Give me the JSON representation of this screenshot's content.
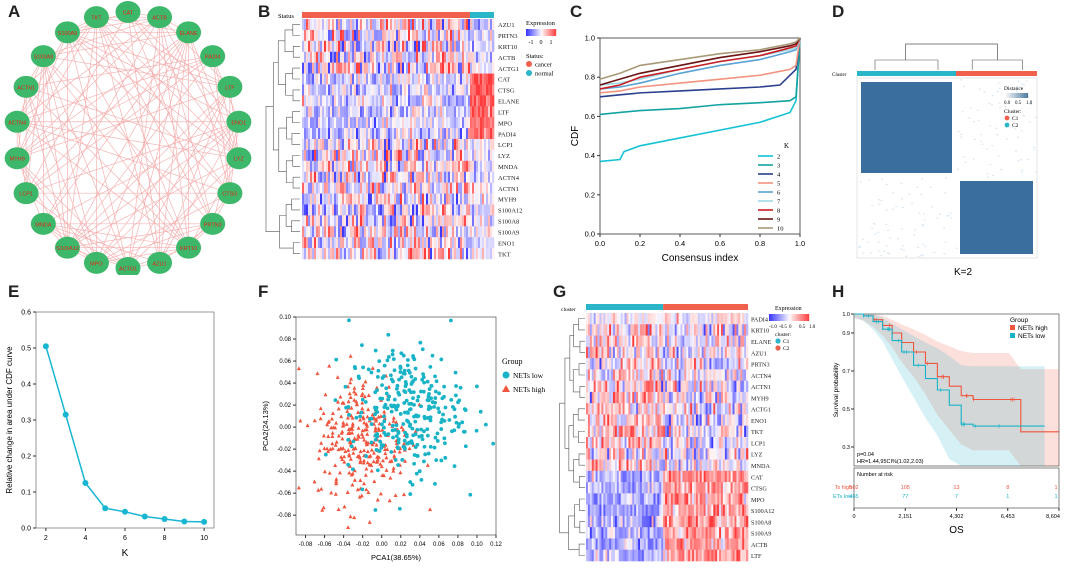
{
  "panel_labels": [
    "A",
    "B",
    "C",
    "D",
    "E",
    "F",
    "G",
    "H"
  ],
  "chart_data": [
    {
      "panel": "A",
      "type": "network",
      "nodes": [
        "CAT",
        "TKT",
        "S100A9",
        "S100A8",
        "ACTN1",
        "ACTN4",
        "MYH9",
        "LCP1",
        "MNDA",
        "S100A12",
        "MPO",
        "ACTG1",
        "AZU1",
        "KRT10",
        "PRTN3",
        "CTSG",
        "LYZ",
        "ENO1",
        "LTF",
        "PADI4",
        "ELANE",
        "ACTB"
      ],
      "node_color": "#3db86a",
      "edge_color": "#f4a7a7"
    },
    {
      "panel": "B",
      "type": "heatmap",
      "column_annotation_title": "Status",
      "rows": [
        "AZU1",
        "PRTN3",
        "KRT10",
        "ACTB",
        "ACTG1",
        "CAT",
        "CTSG",
        "ELANE",
        "LTF",
        "MPO",
        "PADI4",
        "LCP1",
        "LYZ",
        "MNDA",
        "ACTN4",
        "ACTN1",
        "MYH9",
        "S100A12",
        "S100A8",
        "S100A9",
        "ENO1",
        "TKT"
      ],
      "legend_title": "Expression",
      "legend_ticks": [
        "-1",
        "0",
        "1"
      ],
      "status_title": "Status:",
      "status_levels": [
        "cancer",
        "normal"
      ],
      "status_colors": [
        "#f0604d",
        "#2bb5c9"
      ]
    },
    {
      "panel": "C",
      "type": "line",
      "xlabel": "Consensus index",
      "ylabel": "CDF",
      "xlim": [
        0,
        1
      ],
      "ylim": [
        0,
        1
      ],
      "x_ticks": [
        "0.0",
        "0.2",
        "0.4",
        "0.6",
        "0.8",
        "1.0"
      ],
      "y_ticks": [
        "0.0",
        "0.2",
        "0.4",
        "0.6",
        "0.8",
        "1.0"
      ],
      "legend_title": "K",
      "series": [
        {
          "name": "2",
          "color": "#16c2d6",
          "x": [
            0,
            0.1,
            0.12,
            0.2,
            0.4,
            0.6,
            0.8,
            0.95,
            0.98,
            1
          ],
          "y": [
            0.37,
            0.38,
            0.42,
            0.45,
            0.49,
            0.53,
            0.57,
            0.62,
            0.68,
            1.0
          ]
        },
        {
          "name": "3",
          "color": "#14a3a0",
          "x": [
            0,
            0.1,
            0.2,
            0.4,
            0.6,
            0.8,
            0.95,
            0.98,
            1
          ],
          "y": [
            0.61,
            0.62,
            0.63,
            0.64,
            0.66,
            0.67,
            0.68,
            0.7,
            1.0
          ]
        },
        {
          "name": "4",
          "color": "#2b3f8e",
          "x": [
            0,
            0.1,
            0.2,
            0.4,
            0.6,
            0.8,
            0.9,
            0.95,
            0.98,
            1
          ],
          "y": [
            0.7,
            0.71,
            0.72,
            0.73,
            0.74,
            0.75,
            0.76,
            0.81,
            0.84,
            1.0
          ]
        },
        {
          "name": "5",
          "color": "#f4937f",
          "x": [
            0,
            0.1,
            0.2,
            0.4,
            0.6,
            0.8,
            0.95,
            0.98,
            1
          ],
          "y": [
            0.72,
            0.73,
            0.75,
            0.77,
            0.79,
            0.81,
            0.84,
            0.86,
            1.0
          ]
        },
        {
          "name": "6",
          "color": "#5aa3d6",
          "x": [
            0,
            0.1,
            0.2,
            0.4,
            0.6,
            0.8,
            0.95,
            0.98,
            1
          ],
          "y": [
            0.74,
            0.75,
            0.77,
            0.82,
            0.86,
            0.89,
            0.93,
            0.94,
            1.0
          ]
        },
        {
          "name": "7",
          "color": "#9fd9e6",
          "x": [
            0,
            0.1,
            0.2,
            0.4,
            0.6,
            0.8,
            0.95,
            0.98,
            1
          ],
          "y": [
            0.76,
            0.77,
            0.79,
            0.84,
            0.88,
            0.91,
            0.94,
            0.95,
            1.0
          ]
        },
        {
          "name": "8",
          "color": "#c91f24",
          "x": [
            0,
            0.1,
            0.2,
            0.4,
            0.6,
            0.8,
            0.95,
            0.98,
            1
          ],
          "y": [
            0.74,
            0.76,
            0.8,
            0.84,
            0.88,
            0.91,
            0.95,
            0.96,
            1.0
          ]
        },
        {
          "name": "9",
          "color": "#6b1414",
          "x": [
            0,
            0.1,
            0.2,
            0.4,
            0.6,
            0.8,
            0.95,
            0.98,
            1
          ],
          "y": [
            0.76,
            0.79,
            0.82,
            0.86,
            0.9,
            0.93,
            0.96,
            0.97,
            1.0
          ]
        },
        {
          "name": "10",
          "color": "#a89a78",
          "x": [
            0,
            0.1,
            0.2,
            0.4,
            0.6,
            0.8,
            0.95,
            0.98,
            1
          ],
          "y": [
            0.79,
            0.82,
            0.86,
            0.89,
            0.92,
            0.94,
            0.97,
            0.98,
            1.0
          ]
        }
      ]
    },
    {
      "panel": "D",
      "type": "heatmap",
      "caption": "K=2",
      "annotation_title": "Cluster",
      "legend_title": "Distance",
      "legend_ticks": [
        "0.0",
        "0.5",
        "1.0"
      ],
      "cluster_title": "Cluster:",
      "clusters": [
        "C1",
        "C2"
      ],
      "cluster_colors": [
        "#f0604d",
        "#2bb5c9"
      ],
      "fill_color": "#3a6e9e"
    },
    {
      "panel": "E",
      "type": "line",
      "xlabel": "K",
      "ylabel": "Relative change in area under CDF curve",
      "xlim": [
        1.5,
        10.5
      ],
      "ylim": [
        0,
        0.6
      ],
      "x_ticks": [
        2,
        4,
        6,
        8,
        10
      ],
      "y_ticks": [
        "0.0",
        "0.1",
        "0.2",
        "0.3",
        "0.4",
        "0.5",
        "0.6"
      ],
      "x": [
        2,
        3,
        4,
        5,
        6,
        7,
        8,
        9,
        10
      ],
      "values": [
        0.505,
        0.315,
        0.125,
        0.055,
        0.045,
        0.032,
        0.025,
        0.018,
        0.017
      ],
      "color": "#17b6d2"
    },
    {
      "panel": "F",
      "type": "scatter",
      "xlabel": "PCA1(38.65%)",
      "ylabel": "PCA2(24.13%)",
      "xlim": [
        -0.09,
        0.12
      ],
      "ylim": [
        -0.098,
        0.1
      ],
      "x_ticks": [
        "-0.08",
        "-0.06",
        "-0.04",
        "-0.02",
        "0.00",
        "0.02",
        "0.04",
        "0.06",
        "0.08",
        "0.10",
        "0.12"
      ],
      "y_ticks": [
        "-0.08",
        "-0.06",
        "-0.04",
        "-0.02",
        "0.00",
        "0.02",
        "0.04",
        "0.06",
        "0.08",
        "0.10"
      ],
      "legend_title": "Group",
      "groups": [
        {
          "name": "NETs low",
          "color": "#19b3c7",
          "shape": "circle",
          "n": 465,
          "center": [
            0.025,
            0.015
          ],
          "spread": [
            0.03,
            0.03
          ]
        },
        {
          "name": "NETs high",
          "color": "#f0553e",
          "shape": "triangle",
          "n": 502,
          "center": [
            -0.02,
            -0.01
          ],
          "spread": [
            0.025,
            0.03
          ]
        }
      ]
    },
    {
      "panel": "G",
      "type": "heatmap",
      "column_annotation_title": "cluster",
      "rows": [
        "PADI4",
        "KRT10",
        "ELANE",
        "AZU1",
        "PRTN3",
        "ACTN4",
        "ACTN1",
        "MYH9",
        "ACTG1",
        "ENO1",
        "TKT",
        "LCP1",
        "LYZ",
        "MNDA",
        "CAT",
        "CTSG",
        "MPO",
        "S100A12",
        "S100A8",
        "S100A9",
        "ACTB",
        "LTF"
      ],
      "legend_title": "Expression",
      "legend_ticks": [
        "-1.0",
        "-0.5",
        "0",
        "0.5",
        "1.0"
      ],
      "cluster_title": "cluster:",
      "clusters": [
        "C1",
        "C2"
      ],
      "cluster_colors": [
        "#2bb5c9",
        "#f0604d"
      ]
    },
    {
      "panel": "H",
      "type": "survival",
      "xlabel": "OS",
      "ylabel": "Survival probability",
      "xlim": [
        0,
        8604
      ],
      "ylim": [
        0.2,
        1.0
      ],
      "x_ticks": [
        "0",
        "2,151",
        "4,302",
        "6,453",
        "8,604"
      ],
      "y_ticks": [
        "0.3",
        "0.5",
        "0.7",
        "0.9",
        "1.0"
      ],
      "legend_title": "Group",
      "p_text": "p=0.04",
      "hr_text": "HR=1.44,95CI%(1.02,2.03)",
      "risk_title": "Number at risk",
      "series": [
        {
          "name": "NETs high",
          "risk_label": "Ts high",
          "color": "#f0553e",
          "x": [
            0,
            400,
            800,
            1200,
            1600,
            2000,
            2500,
            3000,
            3500,
            4000,
            4500,
            5000,
            6500,
            7000,
            8604
          ],
          "y": [
            1.0,
            0.99,
            0.97,
            0.94,
            0.9,
            0.85,
            0.8,
            0.74,
            0.67,
            0.62,
            0.57,
            0.55,
            0.55,
            0.38,
            0.38
          ],
          "at_risk": [
            502,
            105,
            13,
            8,
            1
          ]
        },
        {
          "name": "NETs low",
          "risk_label": "ETs low",
          "color": "#19b3c7",
          "x": [
            0,
            400,
            800,
            1200,
            1600,
            2000,
            2500,
            3000,
            3500,
            4000,
            4500,
            5000,
            6000,
            8000
          ],
          "y": [
            1.0,
            0.99,
            0.96,
            0.92,
            0.86,
            0.8,
            0.73,
            0.66,
            0.6,
            0.52,
            0.42,
            0.41,
            0.41,
            0.41
          ],
          "at_risk": [
            465,
            77,
            7,
            1,
            1
          ]
        }
      ]
    }
  ]
}
